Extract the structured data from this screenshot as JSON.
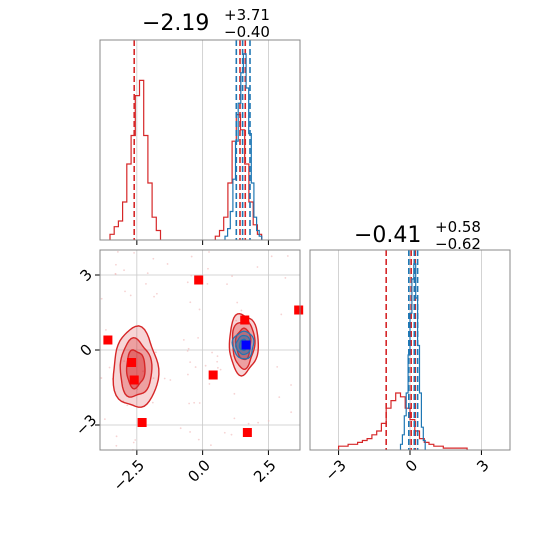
{
  "colors": {
    "red": "#d62728",
    "red_fill": "#f4a6a7",
    "blue": "#1f77b4",
    "blue_fill": "#7fb2d9",
    "marker_red": "#ff0000",
    "marker_blue": "#0000ff",
    "grid": "#c8c8c8",
    "frame": "#888888"
  },
  "titles": [
    {
      "main": "−2.19",
      "sup": "+3.71",
      "sub": "−0.40"
    },
    {
      "main": "−0.41",
      "sup": "+0.58",
      "sub": "−0.62"
    }
  ],
  "chart_data": [
    {
      "type": "histogram",
      "panel": "top-left",
      "xlim": [
        -3.9,
        3.7
      ],
      "xticks": [
        -2.5,
        0.0,
        2.5
      ],
      "grid": true,
      "series": [
        {
          "color": "red",
          "bin_width": 0.16,
          "bins": [
            {
              "x": -3.44,
              "h": 0.03
            },
            {
              "x": -3.28,
              "h": 0.07
            },
            {
              "x": -3.12,
              "h": 0.1
            },
            {
              "x": -2.96,
              "h": 0.2
            },
            {
              "x": -2.8,
              "h": 0.4
            },
            {
              "x": -2.64,
              "h": 0.55
            },
            {
              "x": -2.48,
              "h": 0.76
            },
            {
              "x": -2.32,
              "h": 0.84
            },
            {
              "x": -2.16,
              "h": 0.55
            },
            {
              "x": -2.0,
              "h": 0.3
            },
            {
              "x": -1.84,
              "h": 0.12
            },
            {
              "x": -1.68,
              "h": 0.05
            },
            {
              "x": 0.56,
              "h": 0.02
            },
            {
              "x": 0.72,
              "h": 0.05
            },
            {
              "x": 0.88,
              "h": 0.12
            },
            {
              "x": 1.04,
              "h": 0.3
            },
            {
              "x": 1.2,
              "h": 0.52
            },
            {
              "x": 1.36,
              "h": 0.66
            },
            {
              "x": 1.52,
              "h": 0.58
            },
            {
              "x": 1.68,
              "h": 0.4
            },
            {
              "x": 1.84,
              "h": 0.2
            },
            {
              "x": 2.0,
              "h": 0.08
            },
            {
              "x": 2.16,
              "h": 0.03
            }
          ],
          "quantile_lines": [
            -2.6,
            1.42,
            1.62
          ]
        },
        {
          "color": "blue",
          "bin_width": 0.1,
          "bins": [
            {
              "x": 0.9,
              "h": 0.02
            },
            {
              "x": 1.0,
              "h": 0.06
            },
            {
              "x": 1.1,
              "h": 0.15
            },
            {
              "x": 1.2,
              "h": 0.32
            },
            {
              "x": 1.3,
              "h": 0.52
            },
            {
              "x": 1.4,
              "h": 0.72
            },
            {
              "x": 1.5,
              "h": 0.88
            },
            {
              "x": 1.6,
              "h": 0.98
            },
            {
              "x": 1.7,
              "h": 0.8
            },
            {
              "x": 1.8,
              "h": 0.56
            },
            {
              "x": 1.9,
              "h": 0.3
            },
            {
              "x": 2.0,
              "h": 0.12
            },
            {
              "x": 2.1,
              "h": 0.05
            },
            {
              "x": 2.2,
              "h": 0.02
            }
          ],
          "quantile_lines": [
            1.28,
            1.52,
            1.8
          ]
        }
      ]
    },
    {
      "type": "histogram",
      "panel": "bottom-right",
      "xlim": [
        -4.2,
        4.2
      ],
      "xticks": [
        -3,
        0,
        3
      ],
      "xtick_labels": [
        "−3",
        "0",
        "3"
      ],
      "grid": true,
      "series": [
        {
          "color": "red",
          "bin_width": 0.2,
          "bins": [
            {
              "x": -2.9,
              "h": 0.02
            },
            {
              "x": -2.7,
              "h": 0.02
            },
            {
              "x": -2.5,
              "h": 0.03
            },
            {
              "x": -2.3,
              "h": 0.03
            },
            {
              "x": -2.1,
              "h": 0.04
            },
            {
              "x": -1.9,
              "h": 0.05
            },
            {
              "x": -1.7,
              "h": 0.06
            },
            {
              "x": -1.5,
              "h": 0.08
            },
            {
              "x": -1.3,
              "h": 0.1
            },
            {
              "x": -1.1,
              "h": 0.14
            },
            {
              "x": -0.9,
              "h": 0.22
            },
            {
              "x": -0.7,
              "h": 0.26
            },
            {
              "x": -0.5,
              "h": 0.3
            },
            {
              "x": -0.3,
              "h": 0.28
            },
            {
              "x": -0.1,
              "h": 0.22
            },
            {
              "x": 0.1,
              "h": 0.16
            },
            {
              "x": 0.3,
              "h": 0.1
            },
            {
              "x": 0.5,
              "h": 0.06
            },
            {
              "x": 0.7,
              "h": 0.04
            },
            {
              "x": 0.9,
              "h": 0.03
            },
            {
              "x": 1.1,
              "h": 0.02
            },
            {
              "x": 1.3,
              "h": 0.02
            },
            {
              "x": 1.5,
              "h": 0.01
            },
            {
              "x": 1.7,
              "h": 0.01
            },
            {
              "x": 1.9,
              "h": 0.01
            },
            {
              "x": 2.1,
              "h": 0.01
            },
            {
              "x": 2.3,
              "h": 0.01
            }
          ],
          "quantile_lines": [
            -1.0,
            0.05,
            0.22
          ]
        },
        {
          "color": "blue",
          "bin_width": 0.08,
          "bins": [
            {
              "x": -0.36,
              "h": 0.03
            },
            {
              "x": -0.28,
              "h": 0.08
            },
            {
              "x": -0.2,
              "h": 0.18
            },
            {
              "x": -0.12,
              "h": 0.3
            },
            {
              "x": -0.04,
              "h": 0.5
            },
            {
              "x": 0.04,
              "h": 0.72
            },
            {
              "x": 0.12,
              "h": 0.9
            },
            {
              "x": 0.2,
              "h": 0.98
            },
            {
              "x": 0.28,
              "h": 0.8
            },
            {
              "x": 0.36,
              "h": 0.55
            },
            {
              "x": 0.44,
              "h": 0.3
            },
            {
              "x": 0.52,
              "h": 0.12
            },
            {
              "x": 0.6,
              "h": 0.05
            }
          ],
          "quantile_lines": [
            -0.05,
            0.18,
            0.32
          ]
        }
      ]
    },
    {
      "type": "contour",
      "panel": "bottom-left",
      "xlim": [
        -3.9,
        3.7
      ],
      "ylim": [
        -4.0,
        4.0
      ],
      "xticks": [
        -2.5,
        0.0,
        2.5
      ],
      "xtick_labels": [
        "−2.5",
        "0.0",
        "2.5"
      ],
      "yticks": [
        -3,
        0,
        3
      ],
      "ytick_labels": [
        "−3",
        "0",
        "3"
      ],
      "grid": true,
      "red_modes": [
        {
          "cx": -2.55,
          "cy": -0.75,
          "levels": [
            [
              0.85,
              1.6
            ],
            [
              0.6,
              1.15
            ],
            [
              0.35,
              0.75
            ]
          ]
        },
        {
          "cx": 1.55,
          "cy": 0.25,
          "levels": [
            [
              0.55,
              1.2
            ],
            [
              0.42,
              0.95
            ],
            [
              0.28,
              0.62
            ]
          ]
        }
      ],
      "blue_mode": {
        "cx": 1.55,
        "cy": 0.2,
        "levels": [
          [
            0.4,
            0.55
          ],
          [
            0.27,
            0.38
          ],
          [
            0.15,
            0.22
          ]
        ]
      },
      "red_markers": [
        {
          "x": -3.6,
          "y": 0.4
        },
        {
          "x": -2.7,
          "y": -0.5
        },
        {
          "x": -2.6,
          "y": -1.2
        },
        {
          "x": -2.3,
          "y": -2.9
        },
        {
          "x": -0.15,
          "y": 2.8
        },
        {
          "x": 0.4,
          "y": -1.0
        },
        {
          "x": 1.6,
          "y": 1.2
        },
        {
          "x": 1.7,
          "y": -3.3
        },
        {
          "x": 3.65,
          "y": 1.6
        }
      ],
      "blue_markers": [
        {
          "x": 1.65,
          "y": 0.2
        }
      ]
    }
  ]
}
